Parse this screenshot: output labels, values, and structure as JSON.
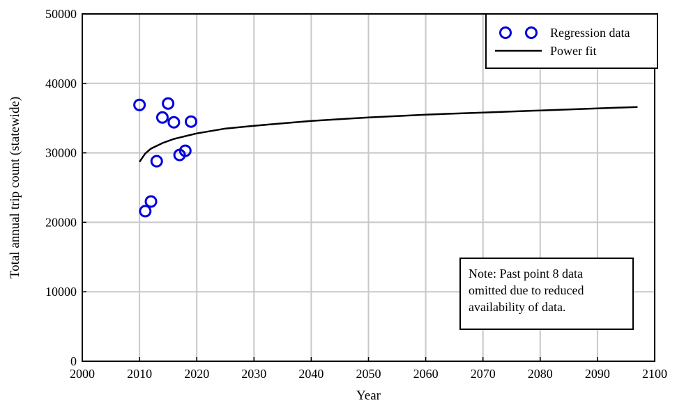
{
  "chart_data": {
    "type": "scatter",
    "title": "",
    "xlabel": "Year",
    "ylabel": "Total annual trip count (statewide)",
    "xlim": [
      2000,
      2100
    ],
    "ylim": [
      0,
      50000
    ],
    "xticks": [
      2000,
      2010,
      2020,
      2030,
      2040,
      2050,
      2060,
      2070,
      2080,
      2090,
      2100
    ],
    "yticks": [
      0,
      10000,
      20000,
      30000,
      40000,
      50000
    ],
    "grid": true,
    "legend": {
      "placement": "top-right",
      "entries": [
        {
          "label": "Regression data",
          "marker": "circle-open",
          "color": "#0000e0"
        },
        {
          "label": "Power fit",
          "marker": "line",
          "color": "#000000"
        }
      ]
    },
    "series": [
      {
        "name": "Regression data",
        "kind": "scatter",
        "color": "#0000e0",
        "points": [
          {
            "x": 2010,
            "y": 36900
          },
          {
            "x": 2011,
            "y": 21600
          },
          {
            "x": 2012,
            "y": 23000
          },
          {
            "x": 2013,
            "y": 28800
          },
          {
            "x": 2014,
            "y": 35100
          },
          {
            "x": 2015,
            "y": 37100
          },
          {
            "x": 2016,
            "y": 34400
          },
          {
            "x": 2017,
            "y": 29700
          },
          {
            "x": 2018,
            "y": 30300
          },
          {
            "x": 2019,
            "y": 34500
          }
        ]
      },
      {
        "name": "Power fit",
        "kind": "line",
        "color": "#000000",
        "points": [
          {
            "x": 2010,
            "y": 28700
          },
          {
            "x": 2011,
            "y": 29900
          },
          {
            "x": 2012,
            "y": 30600
          },
          {
            "x": 2014,
            "y": 31400
          },
          {
            "x": 2016,
            "y": 32000
          },
          {
            "x": 2018,
            "y": 32400
          },
          {
            "x": 2020,
            "y": 32800
          },
          {
            "x": 2025,
            "y": 33500
          },
          {
            "x": 2030,
            "y": 33900
          },
          {
            "x": 2040,
            "y": 34600
          },
          {
            "x": 2050,
            "y": 35100
          },
          {
            "x": 2060,
            "y": 35500
          },
          {
            "x": 2070,
            "y": 35800
          },
          {
            "x": 2080,
            "y": 36100
          },
          {
            "x": 2090,
            "y": 36400
          },
          {
            "x": 2097,
            "y": 36600
          }
        ]
      }
    ],
    "annotations": [
      {
        "lines": [
          "Note: Past point 8 data",
          "omitted due to reduced",
          "availability of data."
        ]
      }
    ]
  }
}
